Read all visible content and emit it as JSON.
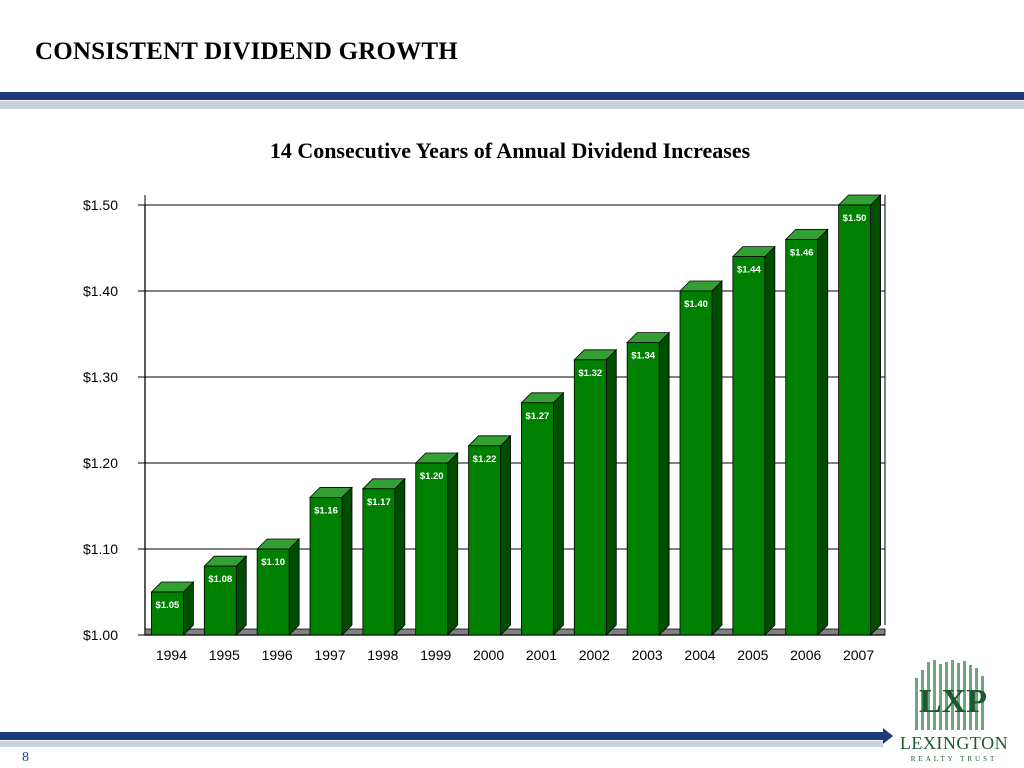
{
  "slide": {
    "title": "CONSISTENT DIVIDEND GROWTH",
    "page_number": "8"
  },
  "logo": {
    "mark": "LXP",
    "name": "LEXINGTON",
    "subtitle": "REALTY TRUST",
    "color": "#1b5a2e"
  },
  "colors": {
    "rule_navy": "#1f3b7a",
    "bar_green": "#008000",
    "bar_green_dark": "#004d00",
    "bar_green_top": "#33a033"
  },
  "chart_data": {
    "type": "bar",
    "title": "14 Consecutive Years of Annual Dividend Increases",
    "categories": [
      "1994",
      "1995",
      "1996",
      "1997",
      "1998",
      "1999",
      "2000",
      "2001",
      "2002",
      "2003",
      "2004",
      "2005",
      "2006",
      "2007"
    ],
    "values": [
      1.05,
      1.08,
      1.1,
      1.16,
      1.17,
      1.2,
      1.22,
      1.27,
      1.32,
      1.34,
      1.4,
      1.44,
      1.46,
      1.5
    ],
    "data_labels": [
      "$1.05",
      "$1.08",
      "$1.10",
      "$1.16",
      "$1.17",
      "$1.20",
      "$1.22",
      "$1.27",
      "$1.32",
      "$1.34",
      "$1.40",
      "$1.44",
      "$1.46",
      "$1.50"
    ],
    "ylim": [
      1.0,
      1.5
    ],
    "yticks": [
      1.0,
      1.1,
      1.2,
      1.3,
      1.4,
      1.5
    ],
    "ytick_labels": [
      "$1.00",
      "$1.10",
      "$1.20",
      "$1.30",
      "$1.40",
      "$1.50"
    ],
    "grid": true,
    "legend": "none",
    "xlabel": "",
    "ylabel": ""
  }
}
